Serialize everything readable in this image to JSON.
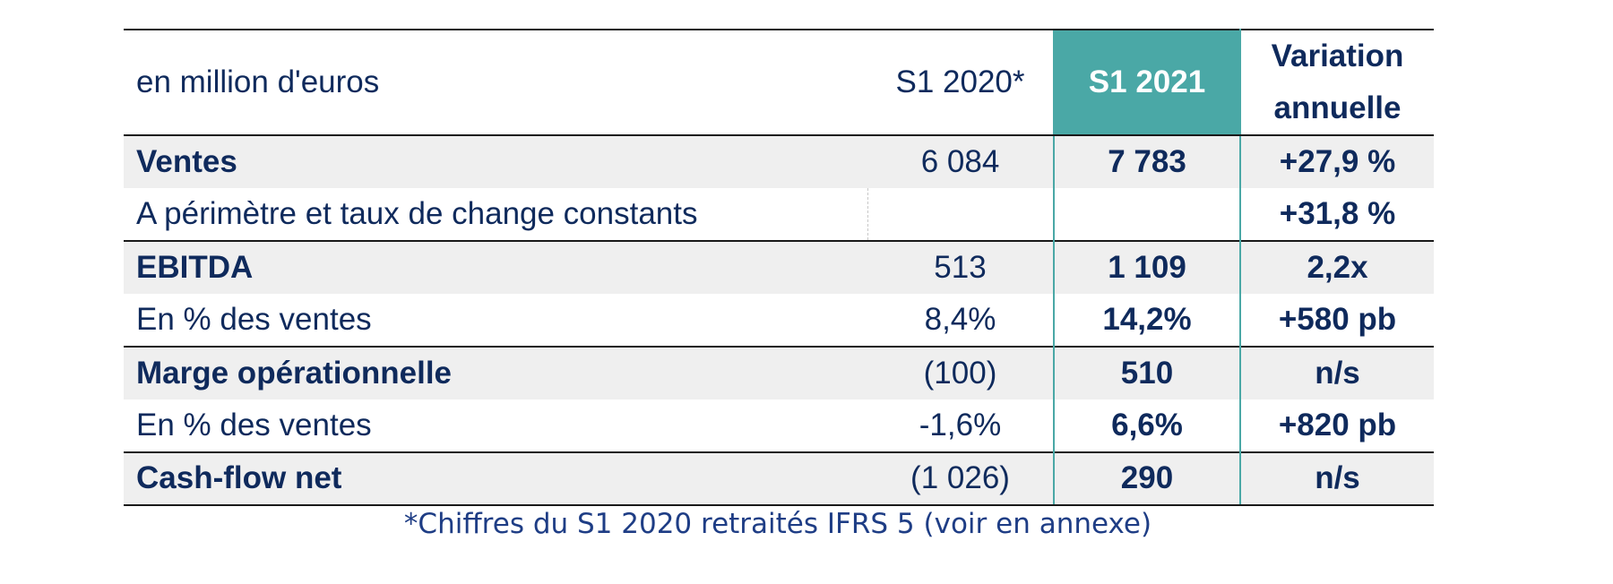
{
  "table": {
    "header": {
      "label": "en million d'euros",
      "col_2020": "S1 2020*",
      "col_2021": "S1 2021",
      "col_var_line1": "Variation",
      "col_var_line2": "annuelle"
    },
    "rows": [
      {
        "label": "Ventes",
        "s1_2020": "6 084",
        "s1_2021": "7 783",
        "variation": "+27,9 %"
      },
      {
        "label": "A périmètre et taux de change constants",
        "s1_2020": "",
        "s1_2021": "",
        "variation": "+31,8 %"
      },
      {
        "label": "EBITDA",
        "s1_2020": "513",
        "s1_2021": "1 109",
        "variation": "2,2x"
      },
      {
        "label": "En % des ventes",
        "s1_2020": "8,4%",
        "s1_2021": "14,2%",
        "variation": "+580 pb"
      },
      {
        "label": "Marge opérationnelle",
        "s1_2020": "(100)",
        "s1_2021": "510",
        "variation": "n/s"
      },
      {
        "label": "En % des ventes",
        "s1_2020": "-1,6%",
        "s1_2021": "6,6%",
        "variation": "+820 pb"
      },
      {
        "label": "Cash-flow net",
        "s1_2020": "(1 026)",
        "s1_2021": "290",
        "variation": "n/s"
      }
    ]
  },
  "footnote": "*Chiffres du S1 2020 retraités IFRS 5 (voir en annexe)",
  "colors": {
    "text": "#0f2a5c",
    "accent_header": "#4aa8a6",
    "row_shade": "#efefef",
    "footnote": "#1e3d85"
  }
}
